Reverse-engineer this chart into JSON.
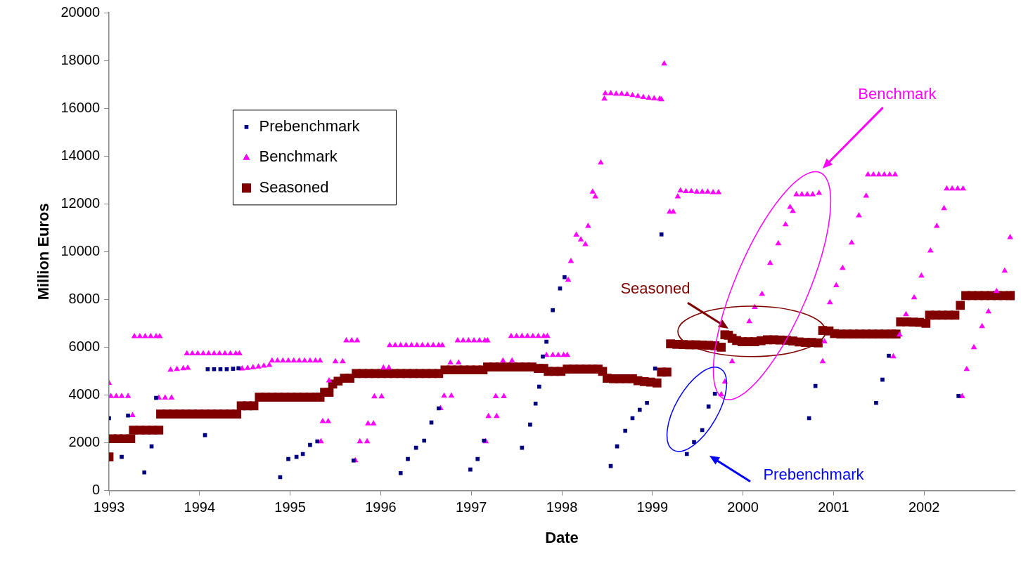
{
  "chart_data": {
    "type": "scatter",
    "xlabel": "Date",
    "ylabel": "Million Euros",
    "xlim": [
      1993,
      2003
    ],
    "xticks": [
      1993,
      1994,
      1995,
      1996,
      1997,
      1998,
      1999,
      2000,
      2001,
      2002
    ],
    "ylim": [
      0,
      20000
    ],
    "yticks": [
      0,
      2000,
      4000,
      6000,
      8000,
      10000,
      12000,
      14000,
      16000,
      18000,
      20000
    ],
    "grid": false,
    "legend": "top left",
    "series": [
      {
        "name": "Prebenchmark",
        "color": "#000080",
        "marker": "square",
        "x": [
          1993.0,
          1993.14,
          1993.21,
          1993.39,
          1993.47,
          1993.52,
          1994.06,
          1994.09,
          1994.16,
          1994.23,
          1994.3,
          1994.37,
          1994.43,
          1994.89,
          1994.98,
          1995.07,
          1995.14,
          1995.22,
          1995.3,
          1995.7,
          1996.22,
          1996.3,
          1996.39,
          1996.48,
          1996.56,
          1996.64,
          1996.99,
          1997.07,
          1997.14,
          1997.56,
          1997.65,
          1997.71,
          1997.75,
          1997.79,
          1997.83,
          1997.9,
          1997.98,
          1998.03,
          1998.54,
          1998.61,
          1998.7,
          1998.78,
          1998.86,
          1998.94,
          1999.03,
          1999.1,
          1999.38,
          1999.46,
          1999.55,
          1999.62,
          1999.69,
          2000.73,
          2000.8,
          2001.47,
          2001.54,
          2001.61,
          2002.38
        ],
        "values": [
          3030,
          1410,
          3140,
          760,
          1850,
          3880,
          2320,
          5080,
          5080,
          5080,
          5080,
          5100,
          5120,
          560,
          1320,
          1410,
          1530,
          1910,
          2060,
          1260,
          730,
          1320,
          1790,
          2090,
          2850,
          3440,
          880,
          1320,
          2090,
          1790,
          2760,
          3640,
          4350,
          5610,
          6230,
          7550,
          8460,
          8930,
          1030,
          1850,
          2500,
          3030,
          3380,
          3670,
          5110,
          10720,
          1530,
          2030,
          2530,
          3520,
          4050,
          3030,
          4380,
          3670,
          4640,
          5640,
          3960
        ]
      },
      {
        "name": "Benchmark",
        "color": "#ff00ff",
        "marker": "triangle",
        "x": [
          1993.0,
          1993.02,
          1993.08,
          1993.14,
          1993.21,
          1993.26,
          1993.28,
          1993.34,
          1993.4,
          1993.46,
          1993.52,
          1993.56,
          1993.55,
          1993.62,
          1993.69,
          1993.68,
          1993.75,
          1993.82,
          1993.87,
          1993.86,
          1993.92,
          1993.98,
          1994.04,
          1994.1,
          1994.16,
          1994.22,
          1994.28,
          1994.34,
          1994.4,
          1994.44,
          1994.47,
          1994.53,
          1994.59,
          1994.65,
          1994.71,
          1994.77,
          1994.8,
          1994.86,
          1994.92,
          1994.98,
          1995.04,
          1995.1,
          1995.16,
          1995.22,
          1995.28,
          1995.33,
          1995.34,
          1995.36,
          1995.42,
          1995.43,
          1995.5,
          1995.58,
          1995.62,
          1995.68,
          1995.74,
          1995.72,
          1995.77,
          1995.85,
          1995.86,
          1995.92,
          1995.93,
          1996.01,
          1996.03,
          1996.09,
          1996.1,
          1996.16,
          1996.22,
          1996.28,
          1996.34,
          1996.4,
          1996.46,
          1996.52,
          1996.58,
          1996.64,
          1996.68,
          1996.66,
          1996.7,
          1996.78,
          1996.77,
          1996.86,
          1996.85,
          1996.91,
          1996.97,
          1997.03,
          1997.09,
          1997.15,
          1997.18,
          1997.16,
          1997.19,
          1997.28,
          1997.27,
          1997.36,
          1997.35,
          1997.45,
          1997.44,
          1997.5,
          1997.56,
          1997.62,
          1997.68,
          1997.74,
          1997.8,
          1997.84,
          1997.83,
          1997.9,
          1997.96,
          1998.02,
          1998.06,
          1998.07,
          1998.1,
          1998.16,
          1998.21,
          1998.26,
          1998.29,
          1998.34,
          1998.37,
          1998.43,
          1998.47,
          1998.48,
          1998.54,
          1998.6,
          1998.66,
          1998.72,
          1998.78,
          1998.84,
          1998.9,
          1998.96,
          1999.02,
          1999.08,
          1999.1,
          1999.13,
          1999.19,
          1999.23,
          1999.28,
          1999.31,
          1999.37,
          1999.43,
          1999.49,
          1999.55,
          1999.61,
          1999.67,
          1999.73,
          1999.76,
          1999.8,
          1999.88,
          2000.07,
          2000.13,
          2000.21,
          2000.3,
          2000.39,
          2000.47,
          2000.52,
          2000.55,
          2000.59,
          2000.65,
          2000.71,
          2000.77,
          2000.84,
          2000.88,
          2000.9,
          2000.96,
          2001.03,
          2001.1,
          2001.2,
          2001.28,
          2001.36,
          2001.38,
          2001.44,
          2001.5,
          2001.56,
          2001.62,
          2001.68,
          2001.66,
          2001.73,
          2001.8,
          2001.89,
          2001.97,
          2002.07,
          2002.14,
          2002.22,
          2002.25,
          2002.31,
          2002.37,
          2002.43,
          2002.42,
          2002.47,
          2002.55,
          2002.64,
          2002.71,
          2002.8,
          2002.89,
          2002.95
        ],
        "values": [
          4500,
          3950,
          3950,
          3950,
          3950,
          3150,
          6450,
          6450,
          6450,
          6450,
          6450,
          6450,
          3880,
          3880,
          3880,
          5050,
          5080,
          5110,
          5130,
          5730,
          5730,
          5730,
          5730,
          5730,
          5730,
          5730,
          5730,
          5730,
          5730,
          5730,
          5100,
          5120,
          5150,
          5180,
          5220,
          5250,
          5430,
          5430,
          5430,
          5430,
          5430,
          5430,
          5430,
          5430,
          5430,
          5430,
          2050,
          2900,
          2900,
          4600,
          5400,
          5400,
          6280,
          6280,
          6280,
          1260,
          2050,
          2050,
          2800,
          2800,
          3930,
          3930,
          5140,
          5140,
          6080,
          6080,
          6080,
          6080,
          6080,
          6080,
          6080,
          6080,
          6080,
          6080,
          6080,
          3440,
          3960,
          3960,
          5350,
          5350,
          6280,
          6280,
          6280,
          6280,
          6280,
          6280,
          6280,
          2050,
          3110,
          3110,
          3940,
          3940,
          5430,
          5430,
          6460,
          6460,
          6460,
          6460,
          6460,
          6460,
          6460,
          6460,
          5670,
          5670,
          5670,
          5670,
          5670,
          8810,
          9600,
          10700,
          10500,
          10300,
          11070,
          12500,
          12300,
          13720,
          16390,
          16620,
          16620,
          16600,
          16600,
          16580,
          16540,
          16500,
          16460,
          16430,
          16410,
          16390,
          16360,
          17860,
          11660,
          11660,
          12300,
          12550,
          12520,
          12520,
          12500,
          12500,
          12500,
          12480,
          12480,
          4020,
          4550,
          5400,
          7080,
          7670,
          8220,
          9520,
          10340,
          11130,
          11860,
          11690,
          12390,
          12390,
          12390,
          12390,
          12450,
          5400,
          6230,
          7870,
          8580,
          9310,
          10370,
          11510,
          12330,
          13220,
          13220,
          13220,
          13220,
          13220,
          13220,
          5610,
          6520,
          7370,
          8080,
          8990,
          10040,
          11070,
          11810,
          12630,
          12630,
          12630,
          12630,
          3940,
          5080,
          5990,
          6870,
          7490,
          8340,
          9190,
          10600
        ]
      },
      {
        "name": "Seasoned",
        "color": "#800000",
        "marker": "square",
        "x": [
          1993.0,
          1993.03,
          1993.1,
          1993.17,
          1993.24,
          1993.27,
          1993.34,
          1993.41,
          1993.48,
          1993.55,
          1993.57,
          1993.64,
          1993.71,
          1993.78,
          1993.85,
          1993.92,
          1993.99,
          1994.06,
          1994.13,
          1994.2,
          1994.27,
          1994.34,
          1994.41,
          1994.46,
          1994.53,
          1994.6,
          1994.66,
          1994.73,
          1994.8,
          1994.87,
          1994.94,
          1995.01,
          1995.08,
          1995.15,
          1995.22,
          1995.29,
          1995.33,
          1995.38,
          1995.43,
          1995.47,
          1995.53,
          1995.6,
          1995.66,
          1995.73,
          1995.8,
          1995.87,
          1995.94,
          1996.01,
          1996.08,
          1996.15,
          1996.22,
          1996.29,
          1996.36,
          1996.43,
          1996.5,
          1996.57,
          1996.64,
          1996.71,
          1996.78,
          1996.85,
          1996.92,
          1996.99,
          1997.06,
          1997.13,
          1997.18,
          1997.25,
          1997.32,
          1997.39,
          1997.46,
          1997.53,
          1997.6,
          1997.67,
          1997.74,
          1997.8,
          1997.85,
          1997.92,
          1997.99,
          1998.06,
          1998.13,
          1998.2,
          1998.27,
          1998.34,
          1998.4,
          1998.45,
          1998.5,
          1998.57,
          1998.64,
          1998.71,
          1998.78,
          1998.84,
          1998.91,
          1998.98,
          1999.05,
          1999.1,
          1999.16,
          1999.2,
          1999.27,
          1999.34,
          1999.41,
          1999.48,
          1999.55,
          1999.62,
          1999.69,
          1999.76,
          1999.8,
          1999.84,
          1999.88,
          1999.93,
          1999.99,
          2000.06,
          2000.13,
          2000.2,
          2000.27,
          2000.34,
          2000.41,
          2000.48,
          2000.55,
          2000.62,
          2000.69,
          2000.76,
          2000.83,
          2000.88,
          2000.95,
          2001.01,
          2001.08,
          2001.15,
          2001.22,
          2001.29,
          2001.36,
          2001.43,
          2001.5,
          2001.57,
          2001.64,
          2001.69,
          2001.74,
          2001.81,
          2001.88,
          2001.95,
          2002.02,
          2002.06,
          2002.13,
          2002.2,
          2002.27,
          2002.34,
          2002.4,
          2002.46,
          2002.53,
          2002.6,
          2002.67,
          2002.74,
          2002.81,
          2002.88,
          2002.95,
          2002.99
        ],
        "values": [
          1410,
          2170,
          2170,
          2170,
          2170,
          2530,
          2530,
          2530,
          2530,
          2530,
          3200,
          3200,
          3200,
          3200,
          3200,
          3200,
          3200,
          3200,
          3200,
          3200,
          3200,
          3200,
          3200,
          3550,
          3550,
          3550,
          3910,
          3910,
          3910,
          3910,
          3910,
          3910,
          3910,
          3910,
          3910,
          3910,
          3910,
          4110,
          4110,
          4460,
          4580,
          4700,
          4700,
          4900,
          4900,
          4900,
          4900,
          4900,
          4900,
          4900,
          4900,
          4900,
          4900,
          4900,
          4900,
          4900,
          4900,
          5050,
          5050,
          5050,
          5050,
          5050,
          5050,
          5050,
          5170,
          5170,
          5170,
          5170,
          5170,
          5170,
          5170,
          5170,
          5110,
          5110,
          4990,
          4990,
          4990,
          5080,
          5080,
          5080,
          5080,
          5080,
          5080,
          4990,
          4700,
          4680,
          4680,
          4680,
          4680,
          4600,
          4560,
          4540,
          4500,
          4960,
          4960,
          6140,
          6120,
          6110,
          6100,
          6100,
          6090,
          6080,
          6060,
          6000,
          6520,
          6500,
          6370,
          6280,
          6230,
          6230,
          6230,
          6270,
          6310,
          6310,
          6300,
          6290,
          6260,
          6220,
          6200,
          6200,
          6180,
          6700,
          6680,
          6570,
          6550,
          6550,
          6550,
          6550,
          6550,
          6550,
          6550,
          6550,
          6550,
          6550,
          7060,
          7060,
          7050,
          7040,
          7000,
          7340,
          7340,
          7340,
          7340,
          7340,
          7750,
          8160,
          8160,
          8160,
          8160,
          8160,
          8160,
          8160,
          8160,
          8160
        ]
      }
    ],
    "annotations": [
      {
        "text": "Seasoned",
        "x": 1999.84,
        "y": 6780
      },
      "Benchmark",
      "Prebenchmark"
    ]
  }
}
